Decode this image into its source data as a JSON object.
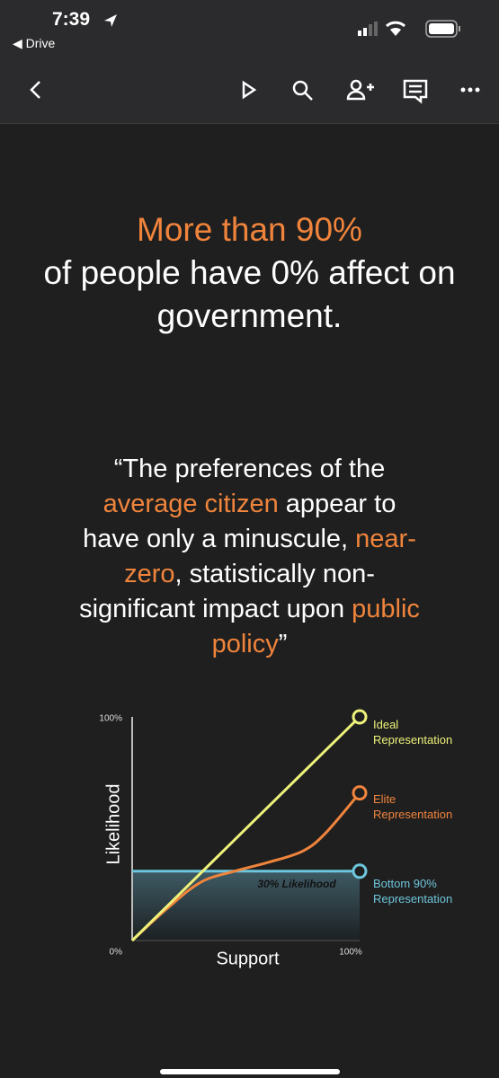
{
  "status_bar": {
    "time": "7:39",
    "back_app": "Drive"
  },
  "slide": {
    "headline": {
      "highlight": "More than 90%",
      "rest": "of people have 0% affect on government."
    },
    "quote": [
      {
        "text": "“The preferences of the ",
        "highlight": false
      },
      {
        "text": "average citizen",
        "highlight": true
      },
      {
        "text": " appear to have only a minuscule, ",
        "highlight": false
      },
      {
        "text": "near-zero",
        "highlight": true
      },
      {
        "text": ", statistically non-significant impact upon ",
        "highlight": false
      },
      {
        "text": "public policy",
        "highlight": true
      },
      {
        "text": "”",
        "highlight": false
      }
    ],
    "chart_data": {
      "type": "line",
      "x_label": "Support",
      "y_label": "Likelihood",
      "annotation": "30% Likelihood",
      "x": [
        0,
        15,
        30,
        45,
        60,
        75,
        85,
        100
      ],
      "series": [
        {
          "name": "Ideal Representation",
          "color": "#eef27a",
          "values": [
            0,
            15,
            30,
            45,
            60,
            75,
            85,
            100
          ]
        },
        {
          "name": "Elite Representation",
          "color": "#f0843c",
          "values": [
            0,
            14,
            26,
            31,
            35,
            40,
            48,
            66
          ]
        },
        {
          "name": "Bottom 90% Representation",
          "color": "#6ec6dc",
          "values": [
            31,
            31,
            31,
            31,
            31,
            31,
            31,
            31
          ]
        }
      ],
      "xlim": [
        0,
        100
      ],
      "ylim": [
        0,
        100
      ],
      "xticks": [
        {
          "value": 100,
          "label": "100%"
        }
      ],
      "yticks": [
        {
          "value": 0,
          "label": "0%"
        },
        {
          "value": 100,
          "label": "100%"
        }
      ]
    }
  }
}
